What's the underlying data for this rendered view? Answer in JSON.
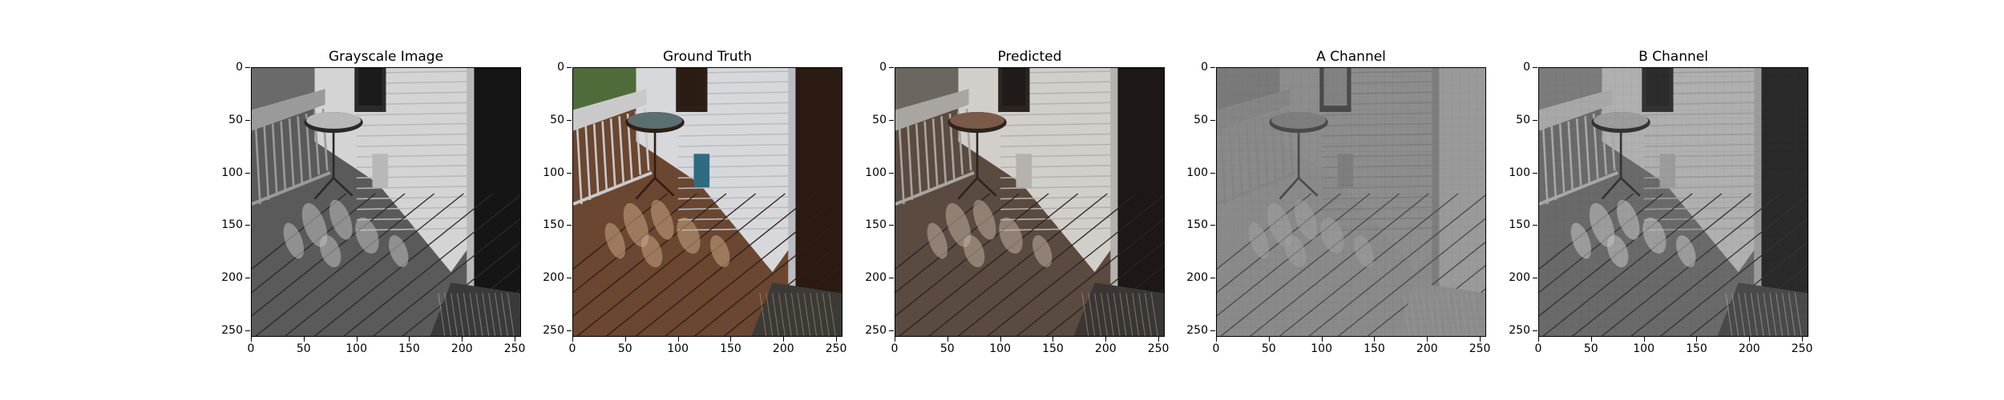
{
  "figure": {
    "panels": [
      {
        "key": "gray",
        "title": "Grayscale Image",
        "tone": "gray"
      },
      {
        "key": "gt",
        "title": "Ground Truth",
        "tone": "color"
      },
      {
        "key": "pred",
        "title": "Predicted",
        "tone": "muted"
      },
      {
        "key": "a",
        "title": "A Channel",
        "tone": "channel-a"
      },
      {
        "key": "b",
        "title": "B Channel",
        "tone": "channel-b"
      }
    ],
    "axis": {
      "x_ticks": [
        "0",
        "50",
        "100",
        "150",
        "200",
        "250"
      ],
      "y_ticks": [
        "0",
        "50",
        "100",
        "150",
        "200",
        "250"
      ],
      "range": [
        0,
        256
      ]
    }
  }
}
